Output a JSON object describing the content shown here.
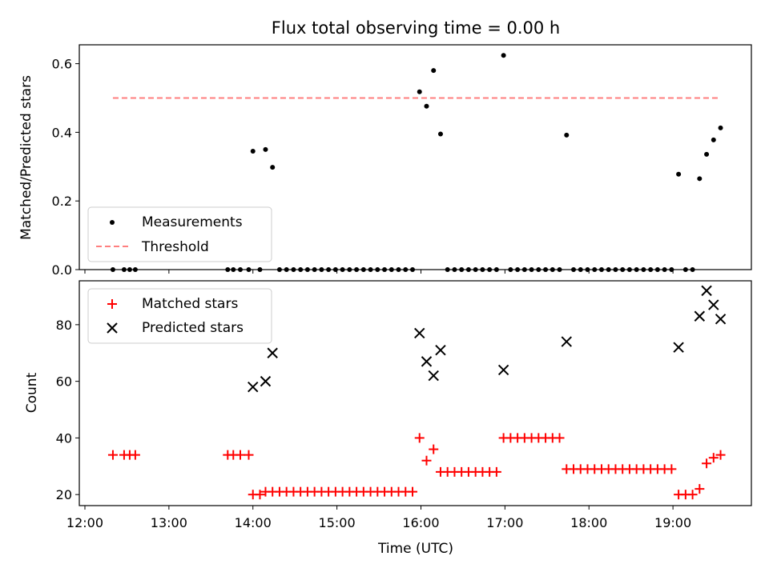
{
  "title": "Flux total observing time = 0.00 h",
  "xlabel": "Time (UTC)",
  "colors": {
    "measurement": "#000000",
    "threshold": "#ff7f7f",
    "matched": "#ff0000",
    "predicted": "#000000"
  },
  "chart_data": [
    {
      "type": "scatter",
      "panel": "top",
      "ylabel": "Matched/Predicted stars",
      "xlim": [
        "11:56",
        "19:56"
      ],
      "ylim": [
        0,
        0.655
      ],
      "x_ticks": [
        "12:00",
        "13:00",
        "14:00",
        "15:00",
        "16:00",
        "17:00",
        "18:00",
        "19:00"
      ],
      "y_ticks": [
        "0.0",
        "0.2",
        "0.4",
        "0.6"
      ],
      "legend_position": "lower-left",
      "series": [
        {
          "name": "Measurements",
          "marker": "dot",
          "points": [
            [
              "12:20",
              0
            ],
            [
              "12:28",
              0
            ],
            [
              "12:32",
              0
            ],
            [
              "12:36",
              0
            ],
            [
              "13:42",
              0
            ],
            [
              "13:46",
              0
            ],
            [
              "13:51",
              0
            ],
            [
              "13:57",
              0
            ],
            [
              "14:00",
              0.345
            ],
            [
              "14:05",
              0
            ],
            [
              "14:09",
              0.35
            ],
            [
              "14:14",
              0.298
            ],
            [
              "14:19",
              0
            ],
            [
              "14:24",
              0
            ],
            [
              "14:29",
              0
            ],
            [
              "14:34",
              0
            ],
            [
              "14:39",
              0
            ],
            [
              "14:44",
              0
            ],
            [
              "14:49",
              0
            ],
            [
              "14:54",
              0
            ],
            [
              "14:59",
              0
            ],
            [
              "15:04",
              0
            ],
            [
              "15:09",
              0
            ],
            [
              "15:14",
              0
            ],
            [
              "15:19",
              0
            ],
            [
              "15:24",
              0
            ],
            [
              "15:29",
              0
            ],
            [
              "15:34",
              0
            ],
            [
              "15:39",
              0
            ],
            [
              "15:44",
              0
            ],
            [
              "15:49",
              0
            ],
            [
              "15:54",
              0
            ],
            [
              "15:59",
              0.518
            ],
            [
              "16:04",
              0.476
            ],
            [
              "16:09",
              0.58
            ],
            [
              "16:14",
              0.395
            ],
            [
              "16:19",
              0
            ],
            [
              "16:24",
              0
            ],
            [
              "16:29",
              0
            ],
            [
              "16:34",
              0
            ],
            [
              "16:39",
              0
            ],
            [
              "16:44",
              0
            ],
            [
              "16:49",
              0
            ],
            [
              "16:54",
              0
            ],
            [
              "16:59",
              0.624
            ],
            [
              "17:04",
              0
            ],
            [
              "17:09",
              0
            ],
            [
              "17:14",
              0
            ],
            [
              "17:19",
              0
            ],
            [
              "17:24",
              0
            ],
            [
              "17:29",
              0
            ],
            [
              "17:34",
              0
            ],
            [
              "17:39",
              0
            ],
            [
              "17:44",
              0.392
            ],
            [
              "17:49",
              0
            ],
            [
              "17:54",
              0
            ],
            [
              "17:59",
              0
            ],
            [
              "18:04",
              0
            ],
            [
              "18:09",
              0
            ],
            [
              "18:14",
              0
            ],
            [
              "18:19",
              0
            ],
            [
              "18:24",
              0
            ],
            [
              "18:29",
              0
            ],
            [
              "18:34",
              0
            ],
            [
              "18:39",
              0
            ],
            [
              "18:44",
              0
            ],
            [
              "18:49",
              0
            ],
            [
              "18:54",
              0
            ],
            [
              "18:59",
              0
            ],
            [
              "19:04",
              0.278
            ],
            [
              "19:09",
              0
            ],
            [
              "19:14",
              0
            ],
            [
              "19:19",
              0.265
            ],
            [
              "19:24",
              0.336
            ],
            [
              "19:29",
              0.378
            ],
            [
              "19:34",
              0.413
            ]
          ]
        },
        {
          "name": "Threshold",
          "style": "dashed-line",
          "points": [
            [
              "12:20",
              0.5
            ],
            [
              "19:34",
              0.5
            ]
          ]
        }
      ]
    },
    {
      "type": "scatter",
      "panel": "bottom",
      "ylabel": "Count",
      "xlim": [
        "11:56",
        "19:56"
      ],
      "ylim": [
        16.1,
        95.5
      ],
      "x_ticks": [
        "12:00",
        "13:00",
        "14:00",
        "15:00",
        "16:00",
        "17:00",
        "18:00",
        "19:00"
      ],
      "y_ticks": [
        "20",
        "40",
        "60",
        "80"
      ],
      "legend_position": "upper-left",
      "series": [
        {
          "name": "Matched stars",
          "marker": "plus",
          "points": [
            [
              "12:20",
              34
            ],
            [
              "12:28",
              34
            ],
            [
              "12:32",
              34
            ],
            [
              "12:36",
              34
            ],
            [
              "13:42",
              34
            ],
            [
              "13:46",
              34
            ],
            [
              "13:51",
              34
            ],
            [
              "13:57",
              34
            ],
            [
              "14:00",
              20
            ],
            [
              "14:05",
              20
            ],
            [
              "14:09",
              21
            ],
            [
              "14:14",
              21
            ],
            [
              "14:19",
              21
            ],
            [
              "14:24",
              21
            ],
            [
              "14:29",
              21
            ],
            [
              "14:34",
              21
            ],
            [
              "14:39",
              21
            ],
            [
              "14:44",
              21
            ],
            [
              "14:49",
              21
            ],
            [
              "14:54",
              21
            ],
            [
              "14:59",
              21
            ],
            [
              "15:04",
              21
            ],
            [
              "15:09",
              21
            ],
            [
              "15:14",
              21
            ],
            [
              "15:19",
              21
            ],
            [
              "15:24",
              21
            ],
            [
              "15:29",
              21
            ],
            [
              "15:34",
              21
            ],
            [
              "15:39",
              21
            ],
            [
              "15:44",
              21
            ],
            [
              "15:49",
              21
            ],
            [
              "15:54",
              21
            ],
            [
              "15:59",
              40
            ],
            [
              "16:04",
              32
            ],
            [
              "16:09",
              36
            ],
            [
              "16:14",
              28
            ],
            [
              "16:19",
              28
            ],
            [
              "16:24",
              28
            ],
            [
              "16:29",
              28
            ],
            [
              "16:34",
              28
            ],
            [
              "16:39",
              28
            ],
            [
              "16:44",
              28
            ],
            [
              "16:49",
              28
            ],
            [
              "16:54",
              28
            ],
            [
              "16:59",
              40
            ],
            [
              "17:04",
              40
            ],
            [
              "17:09",
              40
            ],
            [
              "17:14",
              40
            ],
            [
              "17:19",
              40
            ],
            [
              "17:24",
              40
            ],
            [
              "17:29",
              40
            ],
            [
              "17:34",
              40
            ],
            [
              "17:39",
              40
            ],
            [
              "17:44",
              29
            ],
            [
              "17:49",
              29
            ],
            [
              "17:54",
              29
            ],
            [
              "17:59",
              29
            ],
            [
              "18:04",
              29
            ],
            [
              "18:09",
              29
            ],
            [
              "18:14",
              29
            ],
            [
              "18:19",
              29
            ],
            [
              "18:24",
              29
            ],
            [
              "18:29",
              29
            ],
            [
              "18:34",
              29
            ],
            [
              "18:39",
              29
            ],
            [
              "18:44",
              29
            ],
            [
              "18:49",
              29
            ],
            [
              "18:54",
              29
            ],
            [
              "18:59",
              29
            ],
            [
              "19:04",
              20
            ],
            [
              "19:09",
              20
            ],
            [
              "19:14",
              20
            ],
            [
              "19:19",
              22
            ],
            [
              "19:24",
              31
            ],
            [
              "19:29",
              33
            ],
            [
              "19:34",
              34
            ]
          ]
        },
        {
          "name": "Predicted stars",
          "marker": "x",
          "points": [
            [
              "14:00",
              58
            ],
            [
              "14:09",
              60
            ],
            [
              "14:14",
              70
            ],
            [
              "15:59",
              77
            ],
            [
              "16:04",
              67
            ],
            [
              "16:09",
              62
            ],
            [
              "16:14",
              71
            ],
            [
              "16:59",
              64
            ],
            [
              "17:44",
              74
            ],
            [
              "19:04",
              72
            ],
            [
              "19:19",
              83
            ],
            [
              "19:24",
              92
            ],
            [
              "19:29",
              87
            ],
            [
              "19:34",
              82
            ]
          ]
        }
      ]
    }
  ]
}
